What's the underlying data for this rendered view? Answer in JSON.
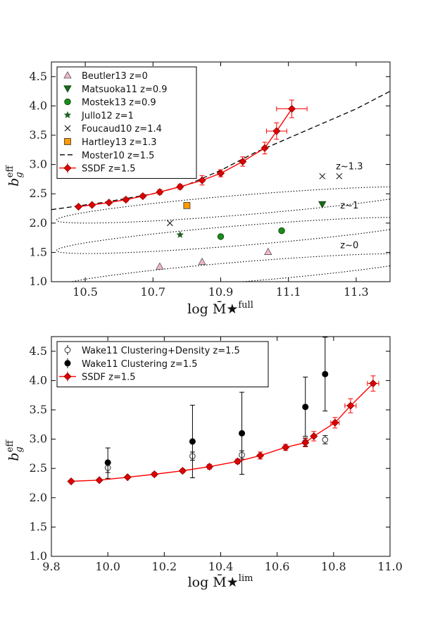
{
  "chart_data": [
    {
      "type": "scatter",
      "xlabel": "log M̄★",
      "xlabel_sup": "full",
      "ylabel": "b",
      "ylabel_sub": "g",
      "ylabel_sup": "eff",
      "xlim": [
        10.4,
        11.4
      ],
      "ylim": [
        1.0,
        4.75
      ],
      "xticks": [
        "10.5",
        "10.7",
        "10.9",
        "11.1",
        "11.3"
      ],
      "yticks": [
        "1.0",
        "1.5",
        "2.0",
        "2.5",
        "3.0",
        "3.5",
        "4.0",
        "4.5"
      ],
      "legend_position": "top-left",
      "colors": {
        "ssdf": "#ff0000",
        "ssdf_marker": "#dd0000",
        "beutler": "#f4b6c8",
        "matsuoka": "#1a6b1a",
        "mostek": "#1a8c1a",
        "jullo": "#1a5e1a",
        "foucaud": "#222222",
        "hartley": "#ff9900",
        "moster": "#000000"
      },
      "series": [
        {
          "name": "Beutler13 z=0",
          "marker": "triangle-up",
          "points": [
            [
              10.72,
              1.26
            ],
            [
              10.845,
              1.34
            ],
            [
              11.04,
              1.51
            ]
          ]
        },
        {
          "name": "Matsuoka11 z=0.9",
          "marker": "triangle-down",
          "points": [
            [
              11.2,
              2.32
            ]
          ]
        },
        {
          "name": "Mostek13 z=0.9",
          "marker": "circle",
          "points": [
            [
              10.9,
              1.77
            ],
            [
              11.08,
              1.87
            ]
          ]
        },
        {
          "name": "Jullo12 z=1",
          "marker": "star",
          "points": [
            [
              10.78,
              1.8
            ]
          ]
        },
        {
          "name": "Foucaud10 z=1.4",
          "marker": "x",
          "points": [
            [
              10.75,
              2.0
            ],
            [
              11.2,
              2.8
            ],
            [
              11.25,
              2.8
            ]
          ]
        },
        {
          "name": "Hartley13 z=1.3",
          "marker": "square",
          "points": [
            [
              10.8,
              2.3
            ]
          ]
        },
        {
          "name": "Moster10 z=1.5",
          "marker": "dashed-line",
          "points": [
            [
              10.4,
              2.23
            ],
            [
              10.55,
              2.35
            ],
            [
              10.7,
              2.5
            ],
            [
              10.8,
              2.65
            ],
            [
              10.9,
              2.9
            ],
            [
              11.0,
              3.2
            ],
            [
              11.1,
              3.45
            ],
            [
              11.2,
              3.7
            ],
            [
              11.3,
              3.95
            ],
            [
              11.4,
              4.25
            ]
          ]
        },
        {
          "name": "SSDF z=1.5",
          "marker": "diamond-line",
          "points": [
            [
              10.48,
              2.28
            ],
            [
              10.52,
              2.31
            ],
            [
              10.57,
              2.35
            ],
            [
              10.62,
              2.4
            ],
            [
              10.67,
              2.46
            ],
            [
              10.72,
              2.53
            ],
            [
              10.78,
              2.62
            ],
            [
              10.845,
              2.73
            ],
            [
              10.9,
              2.85
            ],
            [
              10.965,
              3.05
            ],
            [
              11.03,
              3.28
            ],
            [
              11.065,
              3.57
            ],
            [
              11.11,
              3.95
            ]
          ],
          "yerr": [
            0.02,
            0.02,
            0.02,
            0.03,
            0.03,
            0.04,
            0.04,
            0.08,
            0.06,
            0.08,
            0.1,
            0.14,
            0.15
          ],
          "xerr": [
            0,
            0,
            0,
            0,
            0,
            0,
            0,
            0,
            0,
            0,
            0,
            0.03,
            0.045
          ]
        }
      ],
      "contours": [
        {
          "label": "z~1.3",
          "label_at": [
            11.28,
            2.92
          ],
          "cx": 10.965,
          "cy": 2.31,
          "a": 0.55,
          "b": 0.17,
          "tilt": 0.47
        },
        {
          "label": "z~1",
          "label_at": [
            11.28,
            2.25
          ],
          "cx": 10.965,
          "cy": 1.79,
          "a": 0.55,
          "b": 0.17,
          "tilt": 0.47
        },
        {
          "label": "z~0",
          "label_at": [
            11.28,
            1.57
          ],
          "cx": 10.965,
          "cy": 1.17,
          "a": 0.55,
          "b": 0.17,
          "tilt": 0.47
        }
      ]
    },
    {
      "type": "scatter",
      "xlabel": "log M̄★",
      "xlabel_sup": "lim",
      "ylabel": "b",
      "ylabel_sub": "g",
      "ylabel_sup": "eff",
      "xlim": [
        9.8,
        11.0
      ],
      "ylim": [
        1.0,
        4.75
      ],
      "xticks": [
        "9.8",
        "10.0",
        "10.2",
        "10.4",
        "10.6",
        "10.8",
        "11.0"
      ],
      "yticks": [
        "1.0",
        "1.5",
        "2.0",
        "2.5",
        "3.0",
        "3.5",
        "4.0",
        "4.5"
      ],
      "legend_position": "top-left",
      "colors": {
        "ssdf": "#ff0000",
        "ssdf_marker": "#dd0000",
        "wake": "#000000"
      },
      "series": [
        {
          "name": "Wake11 Clustering+Density z=1.5",
          "marker": "open-circle",
          "points": [
            [
              10.0,
              2.51
            ],
            [
              10.3,
              2.71
            ],
            [
              10.475,
              2.73
            ],
            [
              10.7,
              2.95
            ],
            [
              10.77,
              2.99
            ]
          ],
          "yerr": [
            0.08,
            0.07,
            0.07,
            0.07,
            0.07
          ]
        },
        {
          "name": "Wake11 Clustering z=1.5",
          "marker": "filled-circle",
          "points": [
            [
              10.0,
              2.6
            ],
            [
              10.3,
              2.96
            ],
            [
              10.475,
              3.1
            ],
            [
              10.7,
              3.55
            ],
            [
              10.77,
              4.11
            ]
          ],
          "yerr_low": [
            0.27,
            0.62,
            0.7,
            0.5,
            0.63
          ],
          "yerr_high": [
            0.25,
            0.62,
            0.7,
            0.51,
            0.63
          ]
        },
        {
          "name": "SSDF z=1.5",
          "marker": "diamond-line",
          "points": [
            [
              9.87,
              2.28
            ],
            [
              9.97,
              2.3
            ],
            [
              10.07,
              2.35
            ],
            [
              10.165,
              2.4
            ],
            [
              10.265,
              2.46
            ],
            [
              10.36,
              2.53
            ],
            [
              10.46,
              2.62
            ],
            [
              10.54,
              2.72
            ],
            [
              10.63,
              2.86
            ],
            [
              10.7,
              2.94
            ],
            [
              10.73,
              3.05
            ],
            [
              10.805,
              3.28
            ],
            [
              10.86,
              3.57
            ],
            [
              10.94,
              3.95
            ]
          ],
          "yerr": [
            0.02,
            0.02,
            0.02,
            0.03,
            0.03,
            0.04,
            0.04,
            0.06,
            0.05,
            0.07,
            0.08,
            0.09,
            0.12,
            0.13
          ],
          "xerr": [
            0,
            0,
            0,
            0,
            0,
            0,
            0,
            0,
            0,
            0,
            0,
            0.015,
            0.02,
            0.02
          ]
        }
      ]
    }
  ]
}
